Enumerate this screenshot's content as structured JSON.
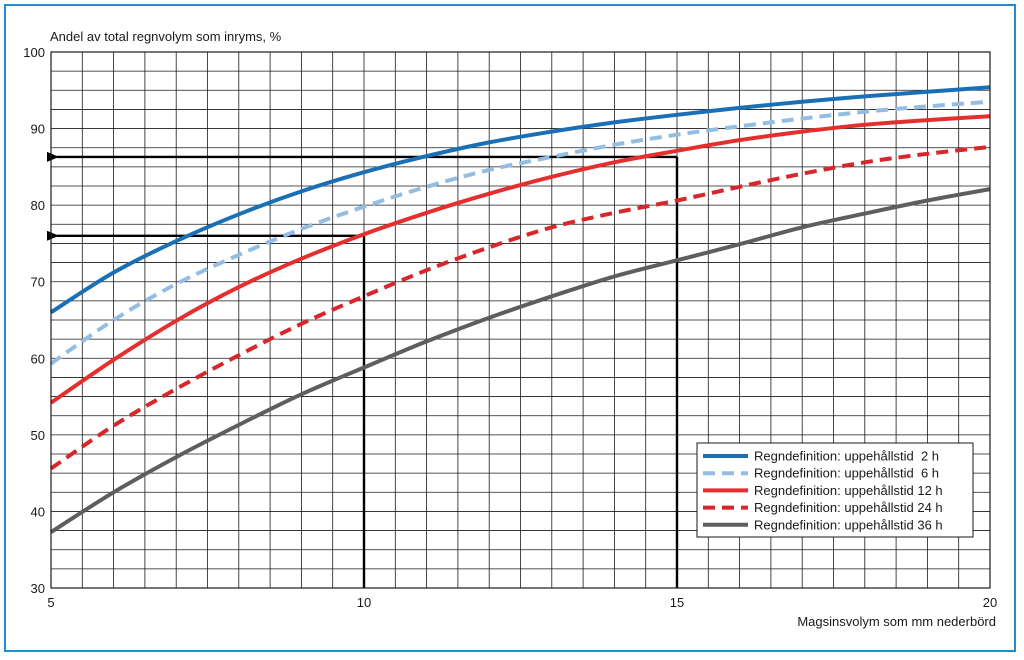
{
  "chart_data": {
    "type": "line",
    "ylabel": "Andel av total regnvolym som inryms, %",
    "xlabel": "Magsinsvolym som mm nederbörd",
    "xlim": [
      5,
      20
    ],
    "ylim": [
      30,
      100
    ],
    "x_ticks": [
      "5",
      "10",
      "15",
      "20"
    ],
    "y_ticks": [
      "30",
      "40",
      "50",
      "60",
      "70",
      "80",
      "90",
      "100"
    ],
    "grid": true,
    "legend_position": "bottom-right",
    "x": [
      5,
      6,
      7,
      8,
      9,
      10,
      11,
      12,
      13,
      14,
      15,
      16,
      17,
      18,
      19,
      20
    ],
    "series": [
      {
        "name": "Regndefinition: uppehållstid  2 h",
        "color": "#1a6fb5",
        "style": "solid",
        "values": [
          66.0,
          71.2,
          75.3,
          78.8,
          81.8,
          84.3,
          86.4,
          88.2,
          89.6,
          90.8,
          91.8,
          92.7,
          93.5,
          94.2,
          94.8,
          95.4
        ]
      },
      {
        "name": "Regndefinition: uppehållstid  6 h",
        "color": "#94bde3",
        "style": "dashed",
        "values": [
          59.3,
          65.0,
          69.7,
          73.5,
          76.9,
          79.8,
          82.4,
          84.6,
          86.3,
          87.9,
          89.2,
          90.3,
          91.3,
          92.2,
          92.9,
          93.5
        ]
      },
      {
        "name": "Regndefinition: uppehållstid 12 h",
        "color": "#e52f2f",
        "style": "solid",
        "values": [
          54.2,
          59.8,
          64.9,
          69.3,
          73.0,
          76.2,
          79.0,
          81.5,
          83.7,
          85.6,
          87.1,
          88.5,
          89.6,
          90.5,
          91.1,
          91.6
        ]
      },
      {
        "name": "Regndefinition: uppehållstid 24 h",
        "color": "#d8262b",
        "style": "dashed",
        "values": [
          45.6,
          51.2,
          56.0,
          60.4,
          64.5,
          68.1,
          71.5,
          74.5,
          77.1,
          79.0,
          80.6,
          82.4,
          84.1,
          85.6,
          86.7,
          87.6
        ]
      },
      {
        "name": "Regndefinition: uppehållstid 36 h",
        "color": "#5e5e5e",
        "style": "solid",
        "values": [
          37.3,
          42.5,
          47.1,
          51.3,
          55.3,
          58.8,
          62.2,
          65.3,
          68.1,
          70.7,
          72.8,
          74.9,
          77.1,
          78.9,
          80.6,
          82.1
        ]
      }
    ],
    "annotations": [
      {
        "type": "readout",
        "x": 10,
        "y": 76
      },
      {
        "type": "readout",
        "x": 15,
        "y": 86.3
      }
    ]
  }
}
